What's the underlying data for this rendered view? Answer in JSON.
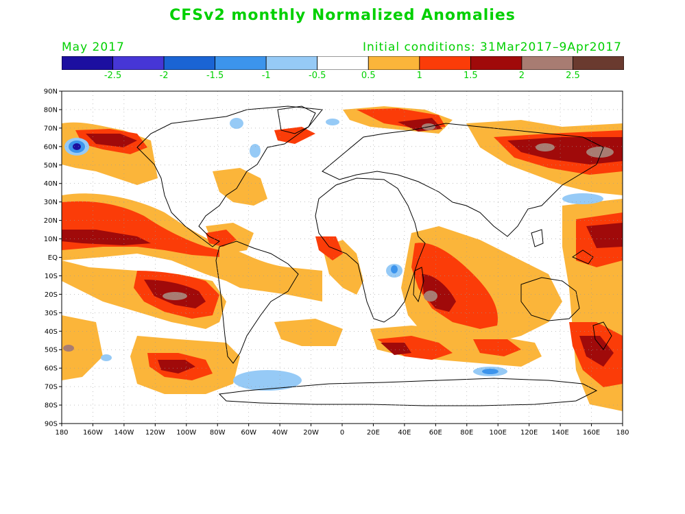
{
  "header": {
    "title": "CFSv2 monthly Normalized Anomalies",
    "month": "May 2017",
    "initial_conditions": "Initial conditions: 31Mar2017–9Apr2017"
  },
  "legend": {
    "colors": [
      "#1c0fa0",
      "#4636d6",
      "#1a64d4",
      "#3c94ec",
      "#96caf6",
      "#ffffff",
      "#fbb53a",
      "#fb3c08",
      "#a00a0a",
      "#a87c72",
      "#6a3a2f"
    ],
    "labels": [
      "-2.5",
      "-2",
      "-1.5",
      "-1",
      "-0.5",
      "0.5",
      "1",
      "1.5",
      "2",
      "2.5"
    ]
  },
  "map": {
    "lat_labels": [
      "90N",
      "80N",
      "70N",
      "60N",
      "50N",
      "40N",
      "30N",
      "20N",
      "10N",
      "EQ",
      "10S",
      "20S",
      "30S",
      "40S",
      "50S",
      "60S",
      "70S",
      "80S",
      "90S"
    ],
    "lon_labels": [
      "180",
      "160W",
      "140W",
      "120W",
      "100W",
      "80W",
      "60W",
      "40W",
      "20W",
      "0",
      "20E",
      "40E",
      "60E",
      "80E",
      "100E",
      "120E",
      "140E",
      "160E",
      "180"
    ],
    "grid": true,
    "coastline_color": "#000000"
  }
}
